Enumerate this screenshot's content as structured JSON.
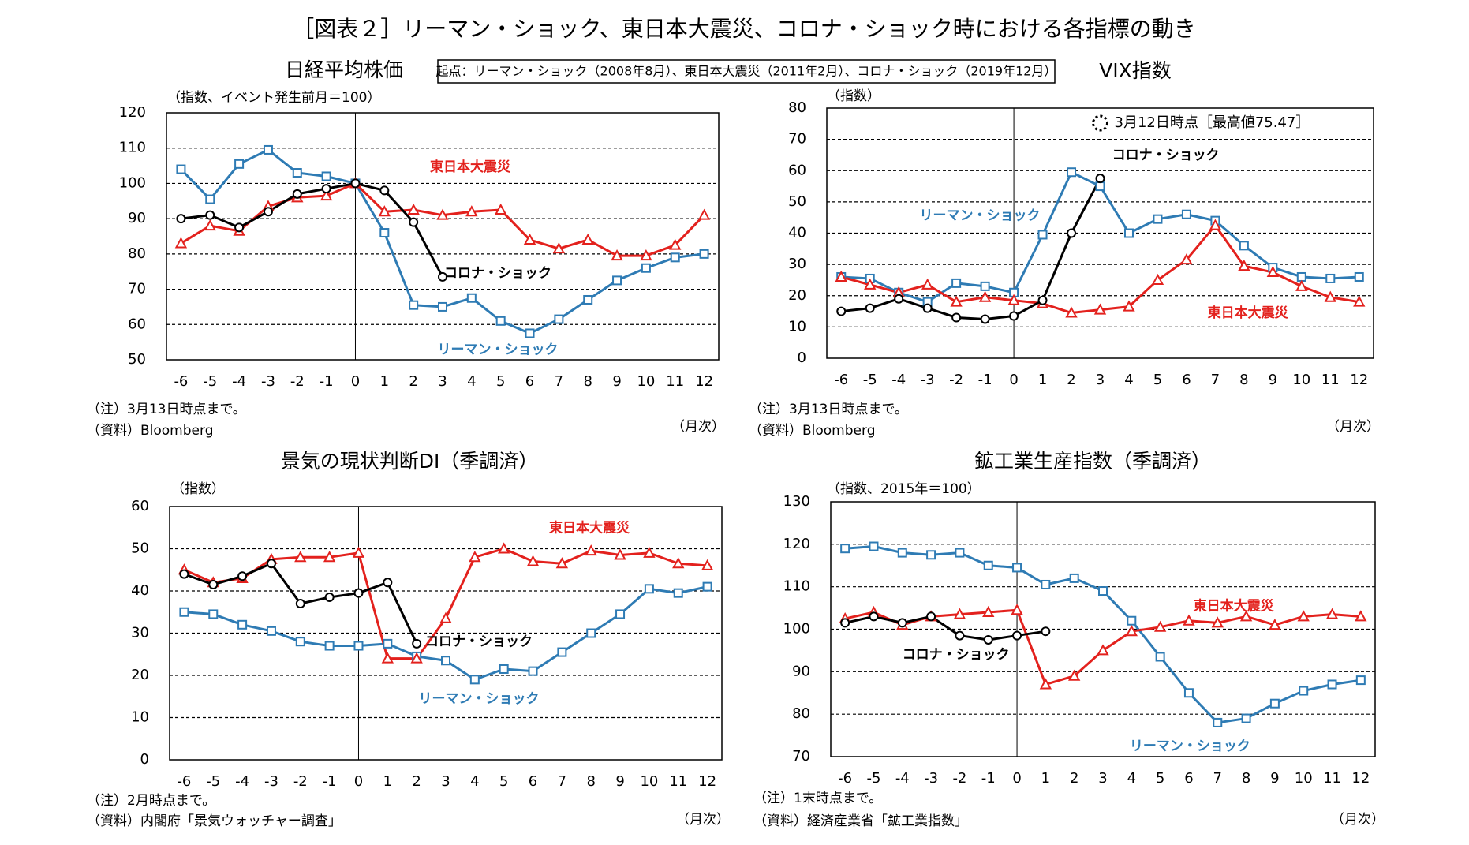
{
  "title": "［図表２］リーマン・ショック、東日本大震災、コロナ・ショック時における各指標の動き",
  "legend_note": "起点：リーマン・ショック（2008年8月）、東日本大震災（2011年2月）、コロナ・ショック（2019年12月）",
  "chart_data": [
    {
      "type": "line",
      "title": "日経平均株価",
      "ylabel": "（指数、イベント発生前月＝100）",
      "x": [
        -6,
        -5,
        -4,
        -3,
        -2,
        -1,
        0,
        1,
        2,
        3,
        4,
        5,
        6,
        7,
        8,
        9,
        10,
        11,
        12
      ],
      "xlim": [
        -6.5,
        12.5
      ],
      "xticks": [
        -6,
        -5,
        -4,
        -3,
        -2,
        -1,
        0,
        1,
        2,
        3,
        4,
        5,
        6,
        7,
        8,
        9,
        10,
        11,
        12
      ],
      "ylim": [
        50,
        120
      ],
      "yticks": [
        50,
        60,
        70,
        80,
        90,
        100,
        110,
        120
      ],
      "grid": true,
      "vline": 0,
      "series": [
        {
          "name": "リーマン・ショック",
          "color": "#2e7bb4",
          "marker": "square",
          "values": [
            104,
            95.5,
            105.5,
            109.5,
            103,
            102,
            100,
            86,
            65.5,
            65,
            67.5,
            61,
            57.5,
            61.5,
            67,
            72.5,
            76,
            79,
            80
          ]
        },
        {
          "name": "東日本大震災",
          "color": "#e3211d",
          "marker": "triangle",
          "values": [
            83,
            88,
            86.5,
            93.5,
            96,
            96.5,
            100,
            92,
            92.5,
            91,
            92,
            92.5,
            84,
            81.5,
            84,
            79.5,
            79.5,
            82.5,
            91
          ]
        },
        {
          "name": "コロナ・ショック",
          "color": "#000000",
          "marker": "circle",
          "values": [
            90,
            91,
            87.5,
            92,
            97,
            98.5,
            100,
            98,
            89,
            73.5,
            null,
            null,
            null,
            null,
            null,
            null,
            null,
            null,
            null
          ]
        }
      ],
      "notes": [
        "（注）3月13日時点まで。",
        "（資料）Bloomberg"
      ],
      "xlabel": "（月次）"
    },
    {
      "type": "line",
      "title": "VIX指数",
      "ylabel": "（指数）",
      "x": [
        -6,
        -5,
        -4,
        -3,
        -2,
        -1,
        0,
        1,
        2,
        3,
        4,
        5,
        6,
        7,
        8,
        9,
        10,
        11,
        12
      ],
      "xlim": [
        -6.5,
        12.5
      ],
      "xticks": [
        -6,
        -5,
        -4,
        -3,
        -2,
        -1,
        0,
        1,
        2,
        3,
        4,
        5,
        6,
        7,
        8,
        9,
        10,
        11,
        12
      ],
      "ylim": [
        0,
        80
      ],
      "yticks": [
        0,
        10,
        20,
        30,
        40,
        50,
        60,
        70,
        80
      ],
      "grid": true,
      "vline": 0,
      "annotation": "3月12日時点［最高値75.47］",
      "series": [
        {
          "name": "リーマン・ショック",
          "color": "#2e7bb4",
          "marker": "square",
          "values": [
            26,
            25.5,
            21,
            18,
            24,
            23,
            21,
            39.5,
            59.5,
            55,
            40,
            44.5,
            46,
            44,
            36,
            29,
            26,
            25.5,
            26
          ]
        },
        {
          "name": "東日本大震災",
          "color": "#e3211d",
          "marker": "triangle",
          "values": [
            26,
            23.5,
            21,
            23.5,
            18,
            19.5,
            18.5,
            17.5,
            14.5,
            15.5,
            16.5,
            25,
            31.5,
            42.5,
            29.5,
            27.5,
            23,
            19.5,
            18
          ]
        },
        {
          "name": "コロナ・ショック",
          "color": "#000000",
          "marker": "circle",
          "values": [
            15,
            16,
            19,
            16,
            13,
            12.5,
            13.5,
            18.5,
            40,
            57.5,
            null,
            null,
            null,
            null,
            null,
            null,
            null,
            null,
            null
          ]
        }
      ],
      "notes": [
        "（注）3月13日時点まで。",
        "（資料）Bloomberg"
      ],
      "xlabel": "（月次）"
    },
    {
      "type": "line",
      "title": "景気の現状判断DI（季調済）",
      "ylabel": "（指数）",
      "x": [
        -6,
        -5,
        -4,
        -3,
        -2,
        -1,
        0,
        1,
        2,
        3,
        4,
        5,
        6,
        7,
        8,
        9,
        10,
        11,
        12
      ],
      "xlim": [
        -6.5,
        12.5
      ],
      "xticks": [
        -6,
        -5,
        -4,
        -3,
        -2,
        -1,
        0,
        1,
        2,
        3,
        4,
        5,
        6,
        7,
        8,
        9,
        10,
        11,
        12
      ],
      "ylim": [
        0,
        60
      ],
      "yticks": [
        0,
        10,
        20,
        30,
        40,
        50,
        60
      ],
      "grid": true,
      "vline": 0,
      "series": [
        {
          "name": "リーマン・ショック",
          "color": "#2e7bb4",
          "marker": "square",
          "values": [
            35,
            34.5,
            32,
            30.5,
            28,
            27,
            27,
            27.5,
            24.5,
            23.5,
            19,
            21.5,
            21,
            25.5,
            30,
            34.5,
            40.5,
            39.5,
            41
          ]
        },
        {
          "name": "東日本大震災",
          "color": "#e3211d",
          "marker": "triangle",
          "values": [
            45,
            42,
            43,
            47.5,
            48,
            48,
            49,
            24,
            24,
            33.5,
            48,
            50,
            47,
            46.5,
            49.5,
            48.5,
            49,
            46.5,
            46
          ]
        },
        {
          "name": "コロナ・ショック",
          "color": "#000000",
          "marker": "circle",
          "values": [
            44,
            41.5,
            43.5,
            46.5,
            37,
            38.5,
            39.5,
            42,
            27.5,
            null,
            null,
            null,
            null,
            null,
            null,
            null,
            null,
            null,
            null
          ]
        }
      ],
      "notes": [
        "（注）2月時点まで。",
        "（資料）内閣府「景気ウォッチャー調査」"
      ],
      "xlabel": "（月次）"
    },
    {
      "type": "line",
      "title": "鉱工業生産指数（季調済）",
      "ylabel": "（指数、2015年＝100）",
      "x": [
        -6,
        -5,
        -4,
        -3,
        -2,
        -1,
        0,
        1,
        2,
        3,
        4,
        5,
        6,
        7,
        8,
        9,
        10,
        11,
        12
      ],
      "xlim": [
        -6.5,
        12.5
      ],
      "xticks": [
        -6,
        -5,
        -4,
        -3,
        -2,
        -1,
        0,
        1,
        2,
        3,
        4,
        5,
        6,
        7,
        8,
        9,
        10,
        11,
        12
      ],
      "ylim": [
        70,
        130
      ],
      "yticks": [
        70,
        80,
        90,
        100,
        110,
        120,
        130
      ],
      "grid": true,
      "vline": 0,
      "series": [
        {
          "name": "リーマン・ショック",
          "color": "#2e7bb4",
          "marker": "square",
          "values": [
            119,
            119.5,
            118,
            117.5,
            118,
            115,
            114.5,
            110.5,
            112,
            109,
            102,
            93.5,
            85,
            78,
            79,
            82.5,
            85.5,
            87,
            88
          ]
        },
        {
          "name": "東日本大震災",
          "color": "#e3211d",
          "marker": "triangle",
          "values": [
            102.5,
            104,
            101,
            103,
            103.5,
            104,
            104.5,
            87,
            89,
            95,
            99.5,
            100.5,
            102,
            101.5,
            103,
            101,
            103,
            103.5,
            103
          ]
        },
        {
          "name": "コロナ・ショック",
          "color": "#000000",
          "marker": "circle",
          "values": [
            101.5,
            103,
            101.5,
            103,
            98.5,
            97.5,
            98.5,
            99.5,
            null,
            null,
            null,
            null,
            null,
            null,
            null,
            null,
            null,
            null,
            null
          ]
        }
      ],
      "notes": [
        "（注）1末時点まで。",
        "（資料）経済産業省「鉱工業指数」"
      ],
      "xlabel": "（月次）"
    }
  ]
}
